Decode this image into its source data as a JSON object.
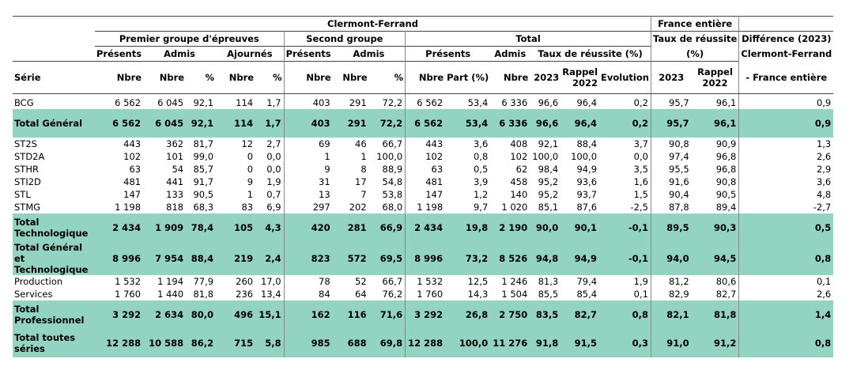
{
  "header": {
    "region": "Clermont-Ferrand",
    "france": "France entière",
    "premier_groupe": "Premier groupe d'épreuves",
    "second_groupe": "Second groupe",
    "total": "Total",
    "taux_reussite_pct": "Taux de réussite",
    "taux_reussite_pct2": "(%)",
    "difference": "Différence (2023)",
    "difference2": "Clermont-Ferrand",
    "difference3": "- France entière",
    "presents": "Présents",
    "admis": "Admis",
    "ajournes": "Ajournés",
    "taux_total": "Taux de réussite (%)",
    "serie": "Série",
    "nbre": "Nbre",
    "pct": "%",
    "part": "Part (%)",
    "y2023": "2023",
    "rappel": "Rappel",
    "rappel_year": "2022",
    "evolution": "Evolution"
  },
  "rows": [
    {
      "type": "row",
      "label": "BCG",
      "v": [
        "6 562",
        "6 045",
        "92,1",
        "114",
        "1,7",
        "403",
        "291",
        "72,2",
        "6 562",
        "53,4",
        "6 336",
        "96,6",
        "96,4",
        "0,2",
        "95,7",
        "96,1",
        "0,9"
      ]
    },
    {
      "type": "total",
      "label": "Total Général",
      "v": [
        "6 562",
        "6 045",
        "92,1",
        "114",
        "1,7",
        "403",
        "291",
        "72,2",
        "6 562",
        "53,4",
        "6 336",
        "96,6",
        "96,4",
        "0,2",
        "95,7",
        "96,1",
        "0,9"
      ]
    },
    {
      "type": "row",
      "label": "ST2S",
      "v": [
        "443",
        "362",
        "81,7",
        "12",
        "2,7",
        "69",
        "46",
        "66,7",
        "443",
        "3,6",
        "408",
        "92,1",
        "88,4",
        "3,7",
        "90,8",
        "90,9",
        "1,3"
      ]
    },
    {
      "type": "row",
      "label": "STD2A",
      "v": [
        "102",
        "101",
        "99,0",
        "0",
        "0,0",
        "1",
        "1",
        "100,0",
        "102",
        "0,8",
        "102",
        "100,0",
        "100,0",
        "0,0",
        "97,4",
        "96,8",
        "2,6"
      ]
    },
    {
      "type": "row",
      "label": "STHR",
      "v": [
        "63",
        "54",
        "85,7",
        "0",
        "0,0",
        "9",
        "8",
        "88,9",
        "63",
        "0,5",
        "62",
        "98,4",
        "94,9",
        "3,5",
        "95,5",
        "96,8",
        "2,9"
      ]
    },
    {
      "type": "row",
      "label": "STI2D",
      "v": [
        "481",
        "441",
        "91,7",
        "9",
        "1,9",
        "31",
        "17",
        "54,8",
        "481",
        "3,9",
        "458",
        "95,2",
        "93,6",
        "1,6",
        "91,6",
        "90,8",
        "3,6"
      ]
    },
    {
      "type": "row",
      "label": "STL",
      "v": [
        "147",
        "133",
        "90,5",
        "1",
        "0,7",
        "13",
        "7",
        "53,8",
        "147",
        "1,2",
        "140",
        "95,2",
        "93,7",
        "1,5",
        "90,4",
        "90,5",
        "4,8"
      ]
    },
    {
      "type": "row",
      "label": "STMG",
      "v": [
        "1 198",
        "818",
        "68,3",
        "83",
        "6,9",
        "297",
        "202",
        "68,0",
        "1 198",
        "9,7",
        "1 020",
        "85,1",
        "87,6",
        "-2,5",
        "87,8",
        "89,4",
        "-2,7"
      ]
    },
    {
      "type": "total",
      "label": "Total Technologique",
      "v": [
        "2 434",
        "1 909",
        "78,4",
        "105",
        "4,3",
        "420",
        "281",
        "66,9",
        "2 434",
        "19,8",
        "2 190",
        "90,0",
        "90,1",
        "-0,1",
        "89,5",
        "90,3",
        "0,5"
      ]
    },
    {
      "type": "total",
      "label": "Total Général et Technologique",
      "v": [
        "8 996",
        "7 954",
        "88,4",
        "219",
        "2,4",
        "823",
        "572",
        "69,5",
        "8 996",
        "73,2",
        "8 526",
        "94,8",
        "94,9",
        "-0,1",
        "94,0",
        "94,5",
        "0,8"
      ]
    },
    {
      "type": "row",
      "label": "Production",
      "v": [
        "1 532",
        "1 194",
        "77,9",
        "260",
        "17,0",
        "78",
        "52",
        "66,7",
        "1 532",
        "12,5",
        "1 246",
        "81,3",
        "79,4",
        "1,9",
        "81,2",
        "80,6",
        "0,1"
      ]
    },
    {
      "type": "row",
      "label": "Services",
      "v": [
        "1 760",
        "1 440",
        "81,8",
        "236",
        "13,4",
        "84",
        "64",
        "76,2",
        "1 760",
        "14,3",
        "1 504",
        "85,5",
        "85,4",
        "0,1",
        "82,9",
        "82,7",
        "2,6"
      ]
    },
    {
      "type": "total",
      "label": "Total Professionnel",
      "v": [
        "3 292",
        "2 634",
        "80,0",
        "496",
        "15,1",
        "162",
        "116",
        "71,6",
        "3 292",
        "26,8",
        "2 750",
        "83,5",
        "82,7",
        "0,8",
        "82,1",
        "81,8",
        "1,4"
      ]
    },
    {
      "type": "total",
      "label": "Total toutes séries",
      "v": [
        "12 288",
        "10 588",
        "86,2",
        "715",
        "5,8",
        "985",
        "688",
        "69,8",
        "12 288",
        "100,0",
        "11 276",
        "91,8",
        "91,5",
        "0,3",
        "91,0",
        "91,2",
        "0,8"
      ]
    }
  ]
}
